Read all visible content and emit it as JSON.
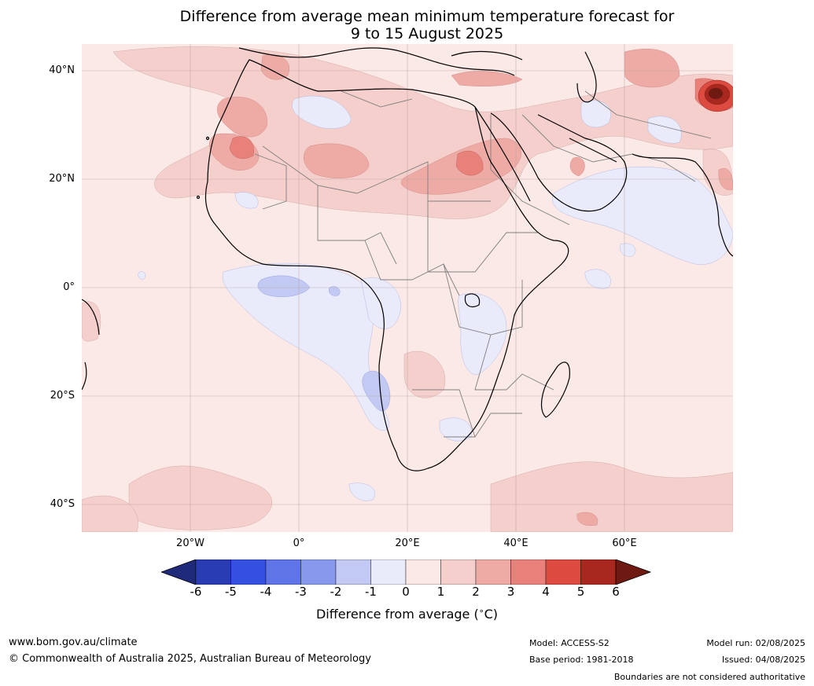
{
  "title": {
    "line1": "Difference from average mean minimum temperature forecast for",
    "line2": "9 to 15 August 2025"
  },
  "map": {
    "lat_labels": [
      "40°N",
      "20°N",
      "0°",
      "20°S",
      "40°S"
    ],
    "lon_labels": [
      "20°W",
      "0°",
      "20°E",
      "40°E",
      "60°E"
    ]
  },
  "colorbar": {
    "ticks": [
      "-6",
      "-5",
      "-4",
      "-3",
      "-2",
      "-1",
      "0",
      "1",
      "2",
      "3",
      "4",
      "5",
      "6"
    ],
    "label_prefix": "Difference from average (",
    "label_sup": "∘",
    "label_suffix": "C)",
    "colors": [
      "#1f2a7a",
      "#2a3cb4",
      "#3550e0",
      "#5f74e6",
      "#8898ec",
      "#c2c9f3",
      "#e9ebfb",
      "#fbe9e7",
      "#f5cfcc",
      "#eeaba6",
      "#e8817a",
      "#dc4a40",
      "#a8281f",
      "#6e1a12"
    ]
  },
  "footer": {
    "url": "www.bom.gov.au/climate",
    "copyright": "© Commonwealth of Australia 2025, Australian Bureau of Meteorology",
    "model": "Model: ACCESS-S2",
    "base_period": "Base period: 1981-2018",
    "model_run": "Model run: 02/08/2025",
    "issued": "Issued: 04/08/2025",
    "disclaimer": "Boundaries are not considered authoritative"
  }
}
